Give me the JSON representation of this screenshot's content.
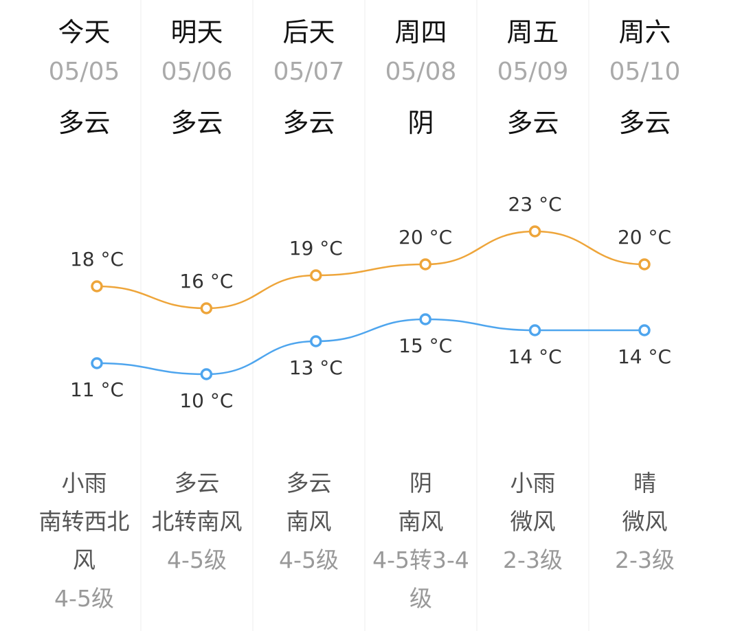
{
  "days": [
    {
      "day": "今天",
      "date": "05/05",
      "weather": "多云",
      "night_weather": "小雨",
      "wind": "南转西北风",
      "level": "4-5级"
    },
    {
      "day": "明天",
      "date": "05/06",
      "weather": "多云",
      "night_weather": "多云",
      "wind": "北转南风",
      "level": "4-5级"
    },
    {
      "day": "后天",
      "date": "05/07",
      "weather": "多云",
      "night_weather": "多云",
      "wind": "南风",
      "level": "4-5级"
    },
    {
      "day": "周四",
      "date": "05/08",
      "weather": "阴",
      "night_weather": "阴",
      "wind": "南风",
      "level": "4-5转3-4级"
    },
    {
      "day": "周五",
      "date": "05/09",
      "weather": "多云",
      "night_weather": "小雨",
      "wind": "微风",
      "level": "2-3级"
    },
    {
      "day": "周六",
      "date": "05/10",
      "weather": "多云",
      "night_weather": "晴",
      "wind": "微风",
      "level": "2-3级"
    }
  ],
  "chart_data": {
    "type": "line",
    "series": [
      {
        "color": "#eea53a",
        "values": [
          18,
          16,
          19,
          20,
          23,
          20
        ],
        "value_labels": [
          "18 °C",
          "16 °C",
          "19 °C",
          "20 °C",
          "23 °C",
          "20 °C"
        ]
      },
      {
        "color": "#4ea5ee",
        "values": [
          11,
          10,
          13,
          15,
          14,
          14
        ],
        "value_labels": [
          "11 °C",
          "10 °C",
          "13 °C",
          "15 °C",
          "14 °C",
          "14 °C"
        ]
      }
    ]
  }
}
